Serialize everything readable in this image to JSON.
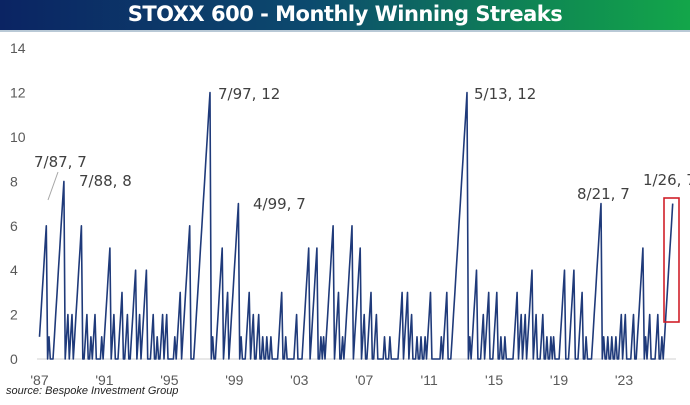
{
  "title": "STOXX 600 - Monthly Winning Streaks",
  "source": "source: Bespoke Investment Group",
  "chart_data": {
    "type": "line",
    "title": "STOXX 600 - Monthly Winning Streaks",
    "xlabel": "",
    "ylabel": "",
    "x_start": "1987-01",
    "x_end": "2026-01",
    "ylim": [
      0,
      14
    ],
    "y_ticks": [
      "0",
      "2",
      "4",
      "6",
      "8",
      "10",
      "12",
      "14"
    ],
    "x_ticks": [
      {
        "label": "'87",
        "date": "1987-01"
      },
      {
        "label": "'91",
        "date": "1991-01"
      },
      {
        "label": "'95",
        "date": "1995-01"
      },
      {
        "label": "'99",
        "date": "1999-01"
      },
      {
        "label": "'03",
        "date": "2003-01"
      },
      {
        "label": "'07",
        "date": "2007-01"
      },
      {
        "label": "'11",
        "date": "2011-01"
      },
      {
        "label": "'15",
        "date": "2015-01"
      },
      {
        "label": "'19",
        "date": "2019-01"
      },
      {
        "label": "'23",
        "date": "2023-01"
      }
    ],
    "grid": false,
    "line_color": "#1f3a7a",
    "highlight_color": "#d0202a",
    "streak_peaks": [
      [
        "1987-07",
        7
      ],
      [
        "1987-08",
        1
      ],
      [
        "1988-07",
        8
      ],
      [
        "1988-10",
        2
      ],
      [
        "1989-01",
        2
      ],
      [
        "1989-08",
        6
      ],
      [
        "1989-12",
        2
      ],
      [
        "1990-03",
        1
      ],
      [
        "1990-06",
        2
      ],
      [
        "1990-11",
        1
      ],
      [
        "1991-05",
        5
      ],
      [
        "1991-08",
        2
      ],
      [
        "1992-02",
        3
      ],
      [
        "1992-06",
        2
      ],
      [
        "1992-12",
        4
      ],
      [
        "1993-03",
        2
      ],
      [
        "1993-08",
        4
      ],
      [
        "1993-11",
        1
      ],
      [
        "1994-01",
        2
      ],
      [
        "1994-04",
        1
      ],
      [
        "1994-08",
        2
      ],
      [
        "1994-11",
        2
      ],
      [
        "1995-06",
        2
      ],
      [
        "1995-09",
        3
      ],
      [
        "1996-04",
        6
      ],
      [
        "1997-07",
        12
      ],
      [
        "1997-09",
        1
      ],
      [
        "1998-04",
        5
      ],
      [
        "1998-08",
        3
      ],
      [
        "1999-04",
        7
      ],
      [
        "1999-06",
        1
      ],
      [
        "1999-09",
        1
      ],
      [
        "1999-12",
        3
      ],
      [
        "2000-03",
        2
      ],
      [
        "2000-07",
        2
      ],
      [
        "2000-10",
        1
      ],
      [
        "2001-01",
        1
      ],
      [
        "2001-04",
        1
      ],
      [
        "2001-12",
        3
      ],
      [
        "2002-03",
        1
      ],
      [
        "2002-11",
        2
      ],
      [
        "2003-08",
        5
      ],
      [
        "2004-02",
        5
      ],
      [
        "2004-05",
        1
      ],
      [
        "2004-07",
        1
      ],
      [
        "2005-02",
        6
      ],
      [
        "2005-06",
        3
      ],
      [
        "2005-09",
        1
      ],
      [
        "2006-04",
        6
      ],
      [
        "2006-10",
        5
      ],
      [
        "2007-01",
        2
      ],
      [
        "2007-06",
        3
      ],
      [
        "2007-10",
        2
      ],
      [
        "2008-04",
        1
      ],
      [
        "2008-08",
        1
      ],
      [
        "2009-05",
        3
      ],
      [
        "2009-09",
        3
      ],
      [
        "2009-12",
        2
      ],
      [
        "2010-04",
        1
      ],
      [
        "2010-07",
        1
      ],
      [
        "2010-11",
        2
      ],
      [
        "2011-02",
        3
      ],
      [
        "2011-10",
        1
      ],
      [
        "2012-02",
        3
      ],
      [
        "2013-05",
        12
      ],
      [
        "2013-07",
        1
      ],
      [
        "2013-12",
        4
      ],
      [
        "2014-05",
        2
      ],
      [
        "2014-09",
        3
      ],
      [
        "2014-12",
        1
      ],
      [
        "2015-03",
        3
      ],
      [
        "2015-06",
        1
      ],
      [
        "2015-09",
        1
      ],
      [
        "2016-06",
        3
      ],
      [
        "2016-09",
        2
      ],
      [
        "2016-12",
        2
      ],
      [
        "2017-05",
        4
      ],
      [
        "2017-08",
        2
      ],
      [
        "2018-01",
        2
      ],
      [
        "2018-04",
        1
      ],
      [
        "2018-07",
        1
      ],
      [
        "2018-09",
        1
      ],
      [
        "2019-05",
        4
      ],
      [
        "2019-09",
        2
      ],
      [
        "2019-12",
        4
      ],
      [
        "2020-06",
        3
      ],
      [
        "2020-09",
        1
      ],
      [
        "2021-08",
        7
      ],
      [
        "2021-10",
        1
      ],
      [
        "2022-01",
        1
      ],
      [
        "2022-04",
        1
      ],
      [
        "2022-07",
        1
      ],
      [
        "2022-11",
        2
      ],
      [
        "2023-02",
        2
      ],
      [
        "2023-08",
        2
      ],
      [
        "2024-03",
        5
      ],
      [
        "2024-05",
        1
      ],
      [
        "2024-08",
        2
      ],
      [
        "2024-12",
        1
      ],
      [
        "2025-02",
        2
      ],
      [
        "2025-05",
        1
      ],
      [
        "2026-01",
        7
      ]
    ],
    "annotations": [
      "7/87, 7",
      "7/88, 8",
      "7/97, 12",
      "4/99, 7",
      "5/13, 12",
      "8/21, 7",
      "1/26, 7"
    ]
  }
}
